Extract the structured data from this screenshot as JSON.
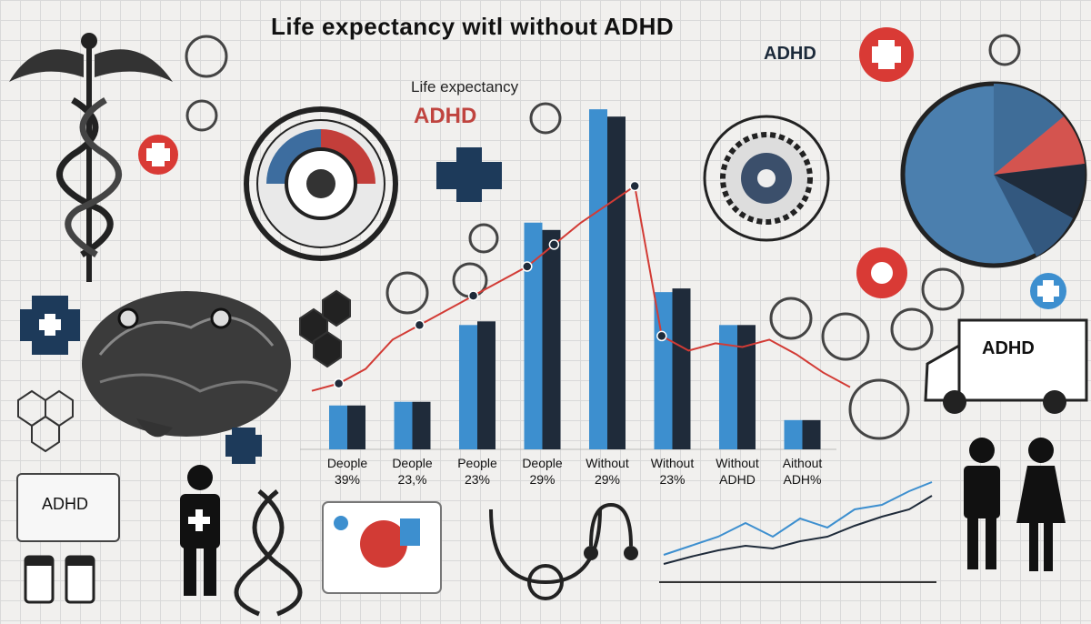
{
  "header": {
    "title": "Life expectancy witl    without ADHD",
    "title_adhd": "ADHD",
    "subtitle": "Life expectancy",
    "subtitle_adhd": "ADHD"
  },
  "decor": {
    "card_label": "ADHD",
    "van_label": "ADHD",
    "colors": {
      "bar_blue": "#3d8fcf",
      "bar_dark": "#1f2b3a",
      "line_red": "#d23b35",
      "accent_red": "#d93a35",
      "navy": "#1d3a5a"
    }
  },
  "chart_data": {
    "type": "bar",
    "categories": [
      [
        "Deople",
        "39%"
      ],
      [
        "Deople",
        "23,%"
      ],
      [
        "People",
        "23%"
      ],
      [
        "Deople",
        "29%"
      ],
      [
        "Without",
        "29%"
      ],
      [
        "Without",
        "23%"
      ],
      [
        "Without",
        "ADHD"
      ],
      [
        "Aithout",
        "ADH%"
      ]
    ],
    "series": [
      {
        "values": [
          12,
          13,
          34,
          62,
          93,
          43,
          34,
          8
        ]
      },
      {
        "values": [
          12,
          13,
          35,
          60,
          91,
          44,
          34,
          8
        ]
      }
    ],
    "line": {
      "values": [
        16,
        18,
        22,
        30,
        34,
        38,
        42,
        46,
        50,
        56,
        62,
        67,
        72,
        31,
        27,
        29,
        28,
        30,
        26,
        21,
        17
      ]
    },
    "ylim": [
      0,
      100
    ]
  }
}
